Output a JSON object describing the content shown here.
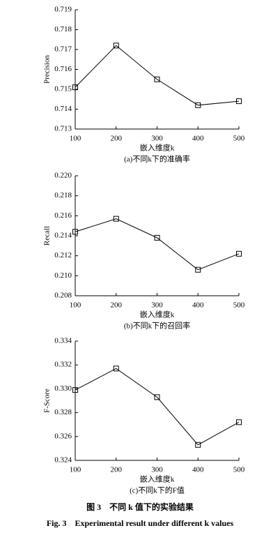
{
  "chart_data": [
    {
      "type": "line",
      "title": "(a)不同k下的准确率",
      "x_label": "嵌入维度k",
      "y_label": "Precision",
      "x": [
        100,
        200,
        300,
        400,
        500
      ],
      "values": [
        0.7151,
        0.7172,
        0.7155,
        0.7142,
        0.7144
      ],
      "color": "#000000",
      "xlim": [
        100,
        500
      ],
      "xticks": [
        100,
        200,
        300,
        400,
        500
      ],
      "ylim": [
        0.713,
        0.719
      ],
      "yticks": [
        0.713,
        0.714,
        0.715,
        0.716,
        0.717,
        0.718,
        0.719
      ]
    },
    {
      "type": "line",
      "title": "(b)不同k下的召回率",
      "x_label": "嵌入维度k",
      "y_label": "Recall",
      "x": [
        100,
        200,
        300,
        400,
        500
      ],
      "values": [
        0.2144,
        0.2157,
        0.2138,
        0.2106,
        0.2122
      ],
      "color": "#000000",
      "xlim": [
        100,
        500
      ],
      "xticks": [
        100,
        200,
        300,
        400,
        500
      ],
      "ylim": [
        0.208,
        0.22
      ],
      "yticks": [
        0.208,
        {
          "value": 0.21,
          "label": "0.210"
        },
        0.212,
        0.214,
        0.216,
        0.218,
        {
          "value": 0.22,
          "label": "0.220"
        }
      ]
    },
    {
      "type": "line",
      "title": "(c)不同k下的F值",
      "x_label": "嵌入维度k",
      "y_label": "F-Score",
      "x": [
        100,
        200,
        300,
        400,
        500
      ],
      "values": [
        0.3299,
        0.3317,
        0.3293,
        0.3253,
        0.3272
      ],
      "color": "#000000",
      "xlim": [
        100,
        500
      ],
      "xticks": [
        100,
        200,
        300,
        400,
        500
      ],
      "ylim": [
        0.324,
        0.334
      ],
      "yticks": [
        0.324,
        0.326,
        0.328,
        {
          "value": 0.33,
          "label": "0.330"
        },
        0.332,
        0.334
      ]
    }
  ],
  "figure_caption": {
    "zh": "图 3　不同 k 值下的实验结果",
    "en": "Fig. 3　Experimental result under different k values"
  }
}
